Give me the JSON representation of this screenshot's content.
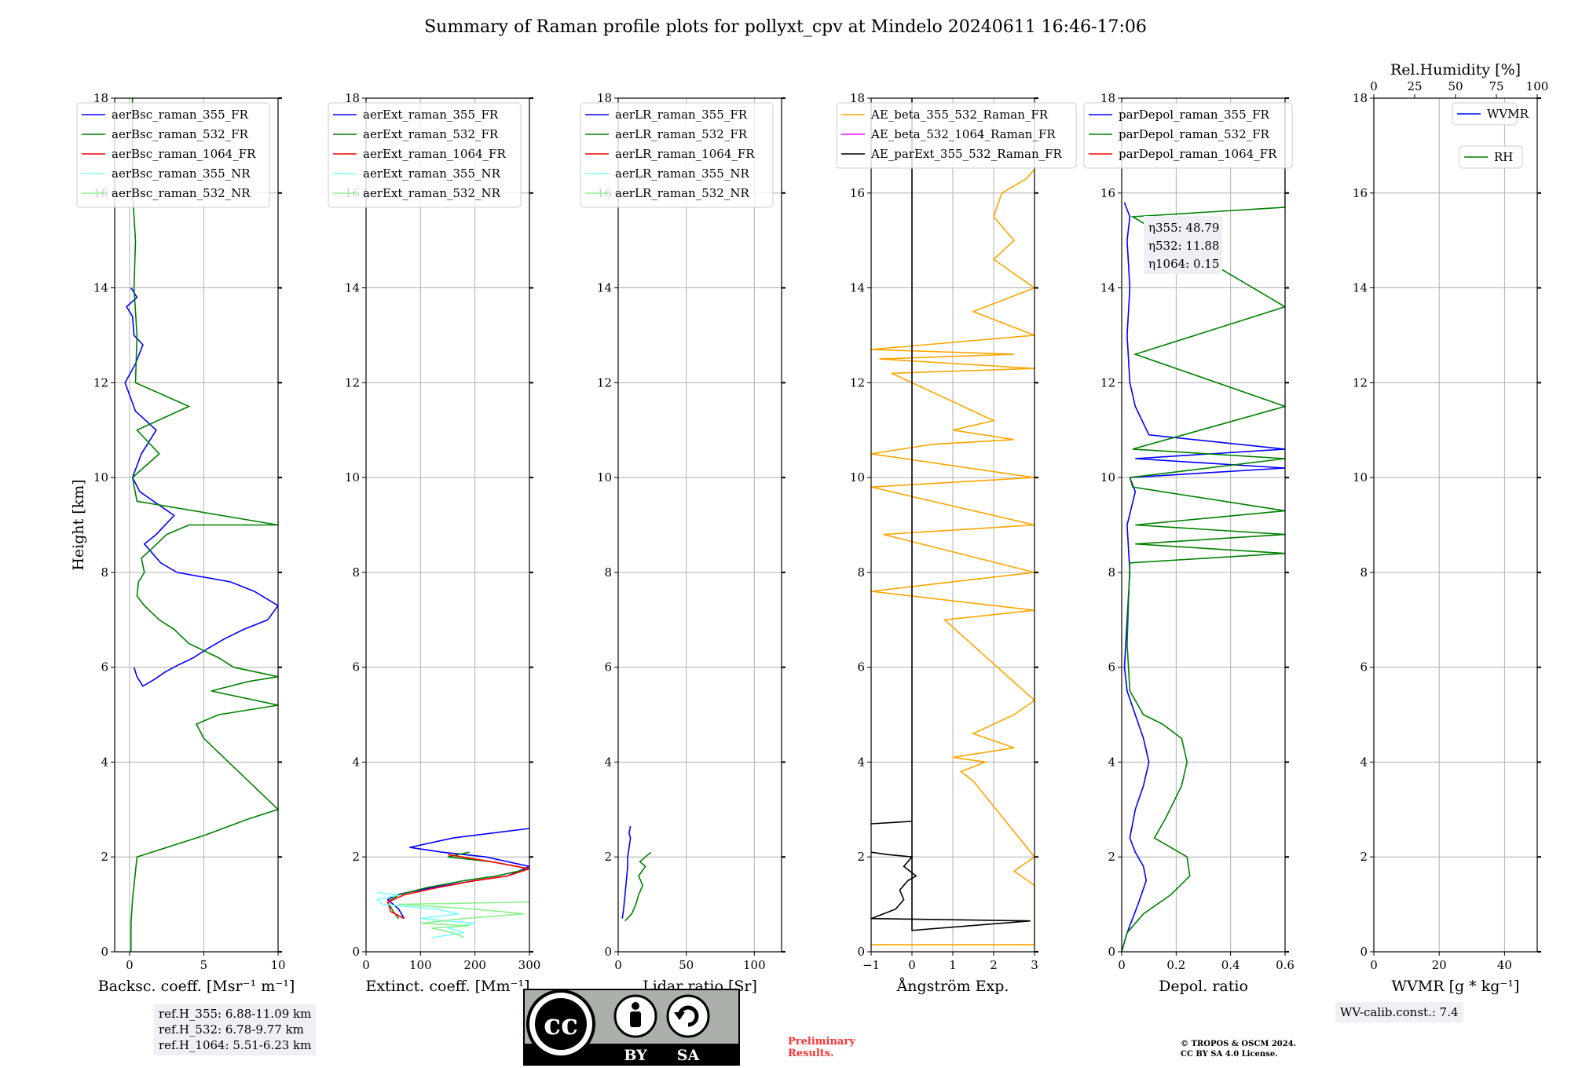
{
  "title": "Summary of Raman profile plots for pollyxt_cpv at Mindelo 20240611 16:46-17:06",
  "colors": {
    "blue": "#0000ff",
    "green": "#008000",
    "red": "#ff0000",
    "cyan": "#7fffff",
    "lightgreen": "#90ee90",
    "orange": "#ffa500",
    "magenta": "#ff00ff",
    "black": "#000000",
    "grid": "#b0b0b0"
  },
  "chart_data": [
    {
      "type": "line",
      "xlabel": "Backsc. coeff. [Msr⁻¹ m⁻¹]",
      "ylabel": "Height [km]",
      "xlim": [
        -1,
        10
      ],
      "ylim": [
        0,
        18
      ],
      "xticks": [
        0,
        5,
        10
      ],
      "yticks": [
        0,
        2,
        4,
        6,
        8,
        10,
        12,
        14,
        16,
        18
      ],
      "legend": [
        "aerBsc_raman_355_FR",
        "aerBsc_raman_532_FR",
        "aerBsc_raman_1064_FR",
        "aerBsc_raman_355_NR",
        "aerBsc_raman_532_NR"
      ],
      "legend_colors": [
        "blue",
        "green",
        "red",
        "cyan",
        "lightgreen"
      ],
      "series": [
        {
          "name": "aerBsc_raman_355_FR",
          "color": "blue",
          "x": [
            0.3,
            0.5,
            0.9,
            1.7,
            2.4,
            3.3,
            4.3,
            5.3,
            6.4,
            7.7,
            9.3,
            10,
            8.4,
            6.8,
            3.2,
            2.1,
            1.0,
            1.8,
            3.0,
            0.7,
            0.2,
            0.8,
            1.8,
            0.4,
            -0.3,
            0.4,
            0.9,
            0.3,
            0.2,
            -0.2,
            0.5,
            0.1
          ],
          "y": [
            6.0,
            5.8,
            5.6,
            5.75,
            5.9,
            6.05,
            6.2,
            6.4,
            6.6,
            6.8,
            7.0,
            7.3,
            7.6,
            7.8,
            8.0,
            8.2,
            8.6,
            8.8,
            9.2,
            9.7,
            10.0,
            10.5,
            11.0,
            11.4,
            12.0,
            12.4,
            12.8,
            13.0,
            13.4,
            13.6,
            13.8,
            14.0
          ]
        },
        {
          "name": "aerBsc_raman_532_FR",
          "color": "green",
          "x": [
            0.1,
            0.1,
            0.2,
            0.5,
            1.5,
            3.0,
            5.0,
            8.0,
            10.0,
            5.0,
            4.5,
            6.0,
            10.0,
            5.5,
            8.0,
            10.0,
            7.0,
            6.0,
            4.0,
            3.0,
            2.0,
            1.0,
            0.5,
            0.6,
            1.0,
            0.8,
            1.5,
            2.5,
            4.0,
            10.0,
            0.5,
            0.2,
            2.0,
            0.5,
            4.0,
            0.4,
            0.5,
            0.4,
            0.3,
            0.4,
            0.2,
            0.2
          ],
          "y": [
            0.0,
            0.6,
            1.1,
            2.0,
            2.1,
            2.25,
            2.45,
            2.8,
            3.0,
            4.5,
            4.8,
            5.0,
            5.2,
            5.5,
            5.7,
            5.8,
            6.0,
            6.2,
            6.5,
            6.8,
            7.0,
            7.3,
            7.5,
            7.8,
            8.0,
            8.3,
            8.5,
            8.8,
            9.0,
            9.0,
            9.5,
            10.0,
            10.5,
            11.0,
            11.5,
            12.0,
            13.0,
            13.5,
            14.0,
            15.0,
            16.0,
            18.0
          ]
        },
        {
          "name": "aerBsc_raman_1064_FR",
          "color": "red",
          "x": [],
          "y": []
        },
        {
          "name": "aerBsc_raman_355_NR",
          "color": "cyan",
          "x": [],
          "y": []
        },
        {
          "name": "aerBsc_raman_532_NR",
          "color": "lightgreen",
          "x": [],
          "y": []
        }
      ]
    },
    {
      "type": "line",
      "xlabel": "Extinct. coeff. [Mm⁻¹]",
      "xlim": [
        0,
        300
      ],
      "ylim": [
        0,
        18
      ],
      "xticks": [
        0,
        100,
        200,
        300
      ],
      "yticks": [
        0,
        2,
        4,
        6,
        8,
        10,
        12,
        14,
        16,
        18
      ],
      "legend": [
        "aerExt_raman_355_FR",
        "aerExt_raman_532_FR",
        "aerExt_raman_1064_FR",
        "aerExt_raman_355_NR",
        "aerExt_raman_532_NR"
      ],
      "legend_colors": [
        "blue",
        "green",
        "red",
        "cyan",
        "lightgreen"
      ],
      "series": [
        {
          "name": "aerExt_raman_355_FR",
          "color": "blue",
          "x": [
            70,
            60,
            40,
            55,
            120,
            200,
            260,
            300,
            220,
            140,
            80,
            160,
            300
          ],
          "y": [
            0.7,
            0.9,
            1.1,
            1.2,
            1.35,
            1.5,
            1.6,
            1.8,
            2.0,
            2.1,
            2.2,
            2.4,
            2.6
          ]
        },
        {
          "name": "aerExt_raman_532_FR",
          "color": "green",
          "x": [
            60,
            50,
            40,
            60,
            110,
            180,
            240,
            300,
            230,
            150,
            190
          ],
          "y": [
            0.7,
            0.85,
            1.05,
            1.2,
            1.35,
            1.5,
            1.6,
            1.75,
            1.9,
            2.0,
            2.1
          ]
        },
        {
          "name": "aerExt_raman_1064_FR",
          "color": "red",
          "x": [
            70,
            45,
            40,
            70,
            130,
            200,
            260,
            300,
            230,
            150
          ],
          "y": [
            0.7,
            0.85,
            1.05,
            1.2,
            1.35,
            1.5,
            1.6,
            1.75,
            1.9,
            2.05
          ]
        },
        {
          "name": "aerExt_raman_355_NR",
          "color": "cyan",
          "x": [
            120,
            180,
            150,
            200,
            100,
            170,
            130,
            30,
            20,
            60,
            20
          ],
          "y": [
            0.3,
            0.4,
            0.5,
            0.6,
            0.7,
            0.8,
            0.9,
            1.0,
            1.1,
            1.2,
            1.25
          ]
        },
        {
          "name": "aerExt_raman_532_NR",
          "color": "lightgreen",
          "x": [
            180,
            160,
            120,
            190,
            100,
            180,
            290,
            200,
            60,
            300
          ],
          "y": [
            0.3,
            0.4,
            0.5,
            0.55,
            0.6,
            0.7,
            0.8,
            0.9,
            1.0,
            1.05
          ]
        }
      ]
    },
    {
      "type": "line",
      "xlabel": "Lidar ratio [Sr]",
      "xlim": [
        0,
        120
      ],
      "ylim": [
        0,
        18
      ],
      "xticks": [
        0,
        50,
        100
      ],
      "yticks": [
        0,
        2,
        4,
        6,
        8,
        10,
        12,
        14,
        16,
        18
      ],
      "legend": [
        "aerLR_raman_355_FR",
        "aerLR_raman_532_FR",
        "aerLR_raman_1064_FR",
        "aerLR_raman_355_NR",
        "aerLR_raman_532_NR"
      ],
      "legend_colors": [
        "blue",
        "green",
        "red",
        "cyan",
        "lightgreen"
      ],
      "series": [
        {
          "name": "aerLR_raman_355_FR",
          "color": "blue",
          "x": [
            3,
            4,
            5,
            6,
            7,
            7,
            8,
            9,
            8,
            9
          ],
          "y": [
            0.7,
            0.9,
            1.2,
            1.5,
            1.8,
            2.0,
            2.2,
            2.4,
            2.5,
            2.65
          ]
        },
        {
          "name": "aerLR_raman_532_FR",
          "color": "green",
          "x": [
            5,
            10,
            13,
            15,
            18,
            15,
            20,
            16,
            20,
            24
          ],
          "y": [
            0.65,
            0.8,
            1.0,
            1.2,
            1.4,
            1.6,
            1.8,
            1.9,
            2.0,
            2.1
          ]
        },
        {
          "name": "aerLR_raman_1064_FR",
          "color": "red",
          "x": [],
          "y": []
        },
        {
          "name": "aerLR_raman_355_NR",
          "color": "cyan",
          "x": [],
          "y": []
        },
        {
          "name": "aerLR_raman_532_NR",
          "color": "lightgreen",
          "x": [],
          "y": []
        }
      ]
    },
    {
      "type": "line",
      "xlabel": "Ångström Exp.",
      "xlim": [
        -1,
        3
      ],
      "ylim": [
        0,
        18
      ],
      "xticks": [
        -1,
        0,
        1,
        2,
        3
      ],
      "yticks": [
        0,
        2,
        4,
        6,
        8,
        10,
        12,
        14,
        16,
        18
      ],
      "legend": [
        "AE_beta_355_532_Raman_FR",
        "AE_beta_532_1064_Raman_FR",
        "AE_parExt_355_532_Raman_FR"
      ],
      "legend_colors": [
        "orange",
        "magenta",
        "black"
      ],
      "series": [
        {
          "name": "AE_beta_355_532_Raman_FR",
          "color": "orange",
          "x": [
            -1,
            3,
            3,
            2.5,
            3,
            1.5,
            1.2,
            1.8,
            1.0,
            2.5,
            1.5,
            2.0,
            2.5,
            3.0,
            0.8,
            3.0,
            -1,
            3.0,
            -0.7,
            3.0,
            -1,
            3.0,
            -1,
            0.5,
            2.5,
            1.0,
            2.0,
            -0.5,
            3.0,
            -0.8,
            2.5,
            -1.0,
            3.0,
            1.5,
            3.0,
            2.0,
            2.5,
            2.0,
            2.2,
            2.8,
            3.0
          ],
          "y": [
            0.15,
            0.15,
            1.4,
            1.7,
            2.0,
            3.6,
            3.8,
            4.0,
            4.1,
            4.3,
            4.6,
            4.8,
            5.0,
            5.3,
            7.0,
            7.2,
            7.6,
            8.0,
            8.8,
            9.0,
            9.8,
            10.0,
            10.5,
            10.7,
            10.8,
            11.0,
            11.2,
            12.2,
            12.3,
            12.5,
            12.6,
            12.7,
            13.0,
            13.5,
            14.0,
            14.6,
            15.0,
            15.5,
            16.0,
            16.3,
            16.5
          ]
        },
        {
          "name": "AE_beta_532_1064_Raman_FR",
          "color": "magenta",
          "x": [],
          "y": []
        },
        {
          "name": "AE_parExt_355_532_Raman_FR",
          "color": "black",
          "x": [
            -1,
            0,
            0,
            0,
            2.9,
            -1,
            -0.4,
            -0.2,
            -0.3,
            -0.1,
            0.1,
            -0.2,
            -0.1,
            0.0,
            -0.6,
            -1
          ],
          "y": [
            2.7,
            2.75,
            18,
            0.45,
            0.65,
            0.7,
            0.9,
            1.1,
            1.3,
            1.5,
            1.6,
            1.8,
            1.9,
            2.0,
            2.05,
            2.1
          ]
        }
      ]
    },
    {
      "type": "line",
      "xlabel": "Depol. ratio",
      "xlim": [
        0,
        0.6
      ],
      "ylim": [
        0,
        18
      ],
      "xticks": [
        0.0,
        0.2,
        0.4,
        0.6
      ],
      "yticks": [
        0,
        2,
        4,
        6,
        8,
        10,
        12,
        14,
        16,
        18
      ],
      "legend": [
        "parDepol_raman_355_FR",
        "parDepol_raman_532_FR",
        "parDepol_raman_1064_FR"
      ],
      "legend_colors": [
        "blue",
        "green",
        "red"
      ],
      "annotation": [
        "η355: 48.79",
        "η532: 11.88",
        "η1064: 0.15"
      ],
      "series": [
        {
          "name": "parDepol_raman_355_FR",
          "color": "blue",
          "x": [
            0.0,
            0.02,
            0.06,
            0.09,
            0.08,
            0.05,
            0.03,
            0.05,
            0.08,
            0.1,
            0.08,
            0.05,
            0.02,
            0.01,
            0.02,
            0.03,
            0.02,
            0.05,
            0.03,
            0.6,
            0.05,
            0.6,
            0.1,
            0.05,
            0.03,
            0.02,
            0.03,
            0.02,
            0.03,
            0.01
          ],
          "y": [
            0.0,
            0.4,
            1.0,
            1.5,
            1.8,
            2.1,
            2.4,
            3.0,
            3.5,
            4.0,
            4.5,
            5.0,
            5.5,
            6.0,
            7.0,
            8.0,
            9.0,
            9.7,
            10.0,
            10.2,
            10.4,
            10.6,
            10.9,
            11.5,
            12.0,
            13.0,
            14.0,
            15.0,
            15.5,
            15.8
          ]
        },
        {
          "name": "parDepol_raman_532_FR",
          "color": "green",
          "x": [
            0.0,
            0.02,
            0.08,
            0.18,
            0.25,
            0.24,
            0.18,
            0.12,
            0.16,
            0.22,
            0.24,
            0.22,
            0.15,
            0.08,
            0.03,
            0.02,
            0.03,
            0.6,
            0.05,
            0.6,
            0.05,
            0.6,
            0.04,
            0.03,
            0.6,
            0.04,
            0.6,
            0.05,
            0.6,
            0.04,
            0.6,
            0.6
          ],
          "y": [
            0.0,
            0.4,
            0.8,
            1.2,
            1.6,
            2.0,
            2.2,
            2.4,
            2.8,
            3.5,
            4.0,
            4.5,
            4.8,
            5.0,
            5.5,
            6.5,
            8.2,
            8.4,
            8.6,
            8.8,
            9.0,
            9.3,
            9.8,
            10.0,
            10.4,
            10.6,
            11.5,
            12.6,
            13.6,
            15.5,
            15.7,
            17.9
          ]
        },
        {
          "name": "parDepol_raman_1064_FR",
          "color": "red",
          "x": [],
          "y": []
        }
      ]
    },
    {
      "type": "line",
      "xlabel": "WVMR [g * kg⁻¹]",
      "x2label": "Rel.Humidity [%]",
      "xlim": [
        0,
        50
      ],
      "x2lim": [
        0,
        100
      ],
      "ylim": [
        0,
        18
      ],
      "xticks": [
        0,
        20,
        40
      ],
      "x2ticks": [
        0,
        25,
        50,
        75,
        100
      ],
      "yticks": [
        0,
        2,
        4,
        6,
        8,
        10,
        12,
        14,
        16,
        18
      ],
      "legend": [
        "WVMR",
        "RH"
      ],
      "legend_colors": [
        "blue",
        "green"
      ],
      "series": [
        {
          "name": "WVMR",
          "color": "blue",
          "x": [],
          "y": []
        },
        {
          "name": "RH",
          "color": "green",
          "x": [],
          "y": []
        }
      ]
    }
  ],
  "info": {
    "ref_lines": [
      "ref.H_355: 6.88-11.09 km",
      "ref.H_532: 6.78-9.77 km",
      "ref.H_1064: 5.51-6.23 km"
    ],
    "wv_calib": "WV-calib.const.: 7.4",
    "prelim_lines": [
      "Preliminary",
      "Results."
    ],
    "copyright_lines": [
      "© TROPOS & OSCM 2024.",
      "CC BY SA 4.0 License."
    ],
    "license_badge": {
      "cc": "cc",
      "by": "BY",
      "sa": "SA"
    }
  }
}
